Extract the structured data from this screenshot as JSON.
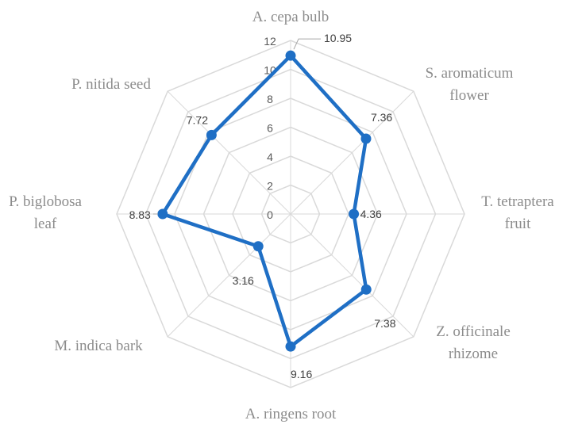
{
  "chart_data": {
    "type": "radar",
    "categories": [
      [
        "A. cepa bulb"
      ],
      [
        "S. aromaticum",
        "flower"
      ],
      [
        "T. tetraptera",
        "fruit"
      ],
      [
        "Z. officinale",
        "rhizome"
      ],
      [
        "A. ringens root"
      ],
      [
        "M. indica bark"
      ],
      [
        "P. biglobosa",
        "leaf"
      ],
      [
        "P. nitida seed"
      ]
    ],
    "series": [
      {
        "values": [
          10.95,
          7.36,
          4.36,
          7.38,
          9.16,
          3.16,
          8.83,
          7.72
        ],
        "data_labels": [
          "10.95",
          "7.36",
          "4.36",
          "7.38",
          "9.16",
          "3.16",
          "8.83",
          "7.72"
        ],
        "color": "#1f6fc5"
      }
    ],
    "rlim": [
      0,
      12
    ],
    "ticks": [
      "0",
      "2",
      "4",
      "6",
      "8",
      "10",
      "12"
    ],
    "grid": true,
    "legend": false
  }
}
